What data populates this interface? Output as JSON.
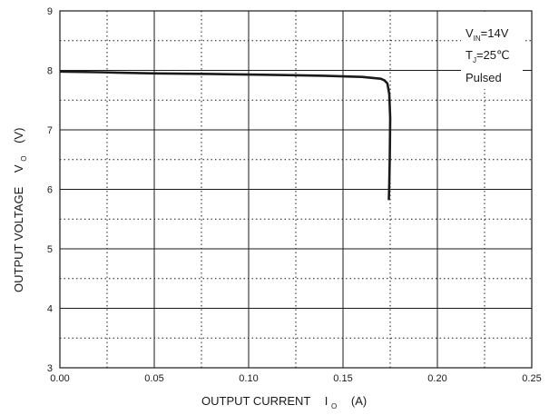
{
  "chart_data": {
    "type": "line",
    "xlabel_main": "OUTPUT CURRENT",
    "xlabel_symbol": "I",
    "xlabel_sub": "O",
    "xlabel_unit": "(A)",
    "ylabel_main": "OUTPUT VOLTAGE",
    "ylabel_symbol": "V",
    "ylabel_sub": "O",
    "ylabel_unit": "(V)",
    "xlim": [
      0,
      0.25
    ],
    "ylim": [
      3,
      9
    ],
    "x_ticks": [
      "0.00",
      "0.05",
      "0.10",
      "0.15",
      "0.20",
      "0.25"
    ],
    "y_ticks": [
      "3",
      "4",
      "5",
      "6",
      "7",
      "8",
      "9"
    ],
    "grid": true,
    "legend_position": "top-right",
    "annotation": {
      "line1_symbol": "V",
      "line1_sub": "IN",
      "line1_value": "=14V",
      "line2_symbol": "T",
      "line2_sub": "J",
      "line2_value": "=25℃",
      "line3": "Pulsed"
    },
    "series": [
      {
        "x": [
          0.0,
          0.02,
          0.05,
          0.08,
          0.1,
          0.12,
          0.14,
          0.16,
          0.17,
          0.172,
          0.1735,
          0.1745,
          0.175,
          0.1748,
          0.1745,
          0.1743
        ],
        "y": [
          7.98,
          7.97,
          7.95,
          7.94,
          7.93,
          7.92,
          7.91,
          7.89,
          7.86,
          7.83,
          7.78,
          7.6,
          7.2,
          6.6,
          6.1,
          5.82
        ],
        "color": "#1a1a1a"
      }
    ]
  }
}
